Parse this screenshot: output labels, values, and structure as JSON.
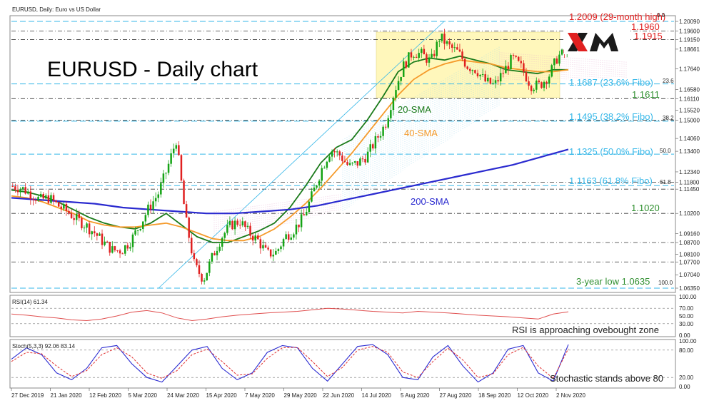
{
  "header": {
    "symbol_line": "EURUSD, Daily: Euro vs US Dollar"
  },
  "title": "EURUSD - Daily chart",
  "logo": {
    "text": "XM"
  },
  "colors": {
    "bull": "#14a314",
    "bear": "#e02020",
    "sma20": "#1a7a1a",
    "sma40": "#f59a2a",
    "sma200": "#2a2acf",
    "fibo": "#36b7e8",
    "annotation_red": "#e02020",
    "annotation_green": "#2f8f2f",
    "consolidation_box": "#fff6b0",
    "rsi_line": "#e05050",
    "stoch_main": "#2b2bd1",
    "stoch_signal": "#e03030"
  },
  "chart_data": {
    "type": "candlestick",
    "price_axis_ticks": [
      "1.20090",
      "1.19600",
      "1.19150",
      "1.18661",
      "1.17640",
      "1.16580",
      "1.16110",
      "1.15520",
      "1.15000",
      "1.14060",
      "1.13400",
      "1.12340",
      "1.11800",
      "1.11450",
      "1.10200",
      "1.09160",
      "1.08700",
      "1.08100",
      "1.07700",
      "1.07040",
      "1.06350"
    ],
    "price_range": [
      1.0635,
      1.2009
    ],
    "date_labels": [
      "27 Dec 2019",
      "21 Jan 2020",
      "12 Feb 2020",
      "5 Mar 2020",
      "24 Mar 2020",
      "15 Apr 2020",
      "7 May 2020",
      "29 May 2020",
      "22 Jun 2020",
      "14 Jul 2020",
      "5 Aug 2020",
      "27 Aug 2020",
      "18 Sep 2020",
      "12 Oct 2020",
      "2 Nov 2020"
    ],
    "close_path": [
      1.116,
      1.115,
      1.112,
      1.109,
      1.11,
      1.106,
      1.103,
      1.099,
      1.096,
      1.092,
      1.087,
      1.083,
      1.083,
      1.088,
      1.096,
      1.105,
      1.112,
      1.125,
      1.14,
      1.1,
      1.075,
      1.068,
      1.08,
      1.09,
      1.096,
      1.098,
      1.092,
      1.088,
      1.081,
      1.082,
      1.09,
      1.094,
      1.1,
      1.112,
      1.125,
      1.135,
      1.132,
      1.126,
      1.128,
      1.132,
      1.14,
      1.148,
      1.165,
      1.178,
      1.185,
      1.184,
      1.18,
      1.193,
      1.188,
      1.185,
      1.178,
      1.176,
      1.17,
      1.168,
      1.175,
      1.182,
      1.177,
      1.168,
      1.168,
      1.173,
      1.183,
      1.185
    ],
    "series": [
      {
        "name": "20-SMA",
        "values": [
          1.114,
          1.113,
          1.111,
          1.108,
          1.104,
          1.1,
          1.097,
          1.095,
          1.094,
          1.097,
          1.102,
          1.096,
          1.09,
          1.087,
          1.087,
          1.09,
          1.093,
          1.097,
          1.105,
          1.116,
          1.128,
          1.136,
          1.14,
          1.15,
          1.162,
          1.175,
          1.18,
          1.182,
          1.181,
          1.183,
          1.181,
          1.179,
          1.176,
          1.175,
          1.174,
          1.176,
          1.176
        ]
      },
      {
        "name": "40-SMA",
        "values": [
          1.111,
          1.11,
          1.108,
          1.105,
          1.102,
          1.098,
          1.096,
          1.095,
          1.095,
          1.096,
          1.097,
          1.095,
          1.092,
          1.089,
          1.088,
          1.088,
          1.09,
          1.094,
          1.1,
          1.107,
          1.115,
          1.124,
          1.133,
          1.143,
          1.153,
          1.163,
          1.171,
          1.176,
          1.179,
          1.181,
          1.18,
          1.179,
          1.177,
          1.176,
          1.175,
          1.175,
          1.176
        ]
      },
      {
        "name": "200-SMA",
        "values": [
          1.11,
          1.109,
          1.108,
          1.107,
          1.105,
          1.104,
          1.103,
          1.102,
          1.102,
          1.103,
          1.104,
          1.106,
          1.109,
          1.112,
          1.115,
          1.118,
          1.121,
          1.124,
          1.127,
          1.131,
          1.135
        ]
      }
    ],
    "fibonacci": [
      {
        "label": "1.2009 (29-month high)",
        "level": "0.0"
      },
      {
        "label": "1.1687 (23.6% Fibo)",
        "level": "23.6"
      },
      {
        "label": "1.1495 (38.2% Fibo)",
        "level": "38.2"
      },
      {
        "label": "1.1325 (50.0% Fibo)",
        "level": "50.0"
      },
      {
        "label": "1.1163 (61.8% Fibo)",
        "level": "61.8"
      },
      {
        "label": "3-year low 1.0635",
        "level": "100.0"
      }
    ],
    "levels": [
      "1.1960",
      "1.1915",
      "1.1611",
      "1.1020"
    ],
    "ma_labels": {
      "sma20": "20-SMA",
      "sma40": "40-SMA",
      "sma200": "200-SMA"
    },
    "rsi": {
      "label": "RSI(14) 61.34",
      "ticks": [
        "100.00",
        "70.00",
        "50.00",
        "30.00",
        "0.00"
      ],
      "values": [
        55,
        52,
        48,
        45,
        40,
        38,
        42,
        50,
        60,
        64,
        58,
        45,
        38,
        42,
        48,
        52,
        55,
        58,
        60,
        62,
        66,
        70,
        68,
        65,
        62,
        60,
        58,
        62,
        60,
        58,
        55,
        52,
        50,
        48,
        45,
        42,
        55,
        61
      ],
      "note": "RSI is approaching ovebought zone"
    },
    "stochastic": {
      "label": "Stoch(5,3,3) 92.06 83.14",
      "ticks": [
        "100.00",
        "80.00",
        "20.00",
        "0.00"
      ],
      "main": [
        60,
        85,
        70,
        30,
        15,
        40,
        85,
        90,
        50,
        20,
        10,
        45,
        80,
        88,
        40,
        15,
        30,
        75,
        90,
        85,
        40,
        12,
        50,
        88,
        92,
        70,
        20,
        15,
        65,
        90,
        45,
        10,
        30,
        82,
        90,
        30,
        12,
        92
      ],
      "signal": [
        55,
        75,
        72,
        45,
        22,
        35,
        70,
        85,
        65,
        30,
        18,
        35,
        70,
        82,
        55,
        25,
        28,
        62,
        85,
        86,
        55,
        22,
        42,
        80,
        88,
        75,
        32,
        20,
        55,
        84,
        58,
        20,
        28,
        70,
        86,
        45,
        18,
        83
      ],
      "note": "Stochastic stands above 80"
    }
  }
}
